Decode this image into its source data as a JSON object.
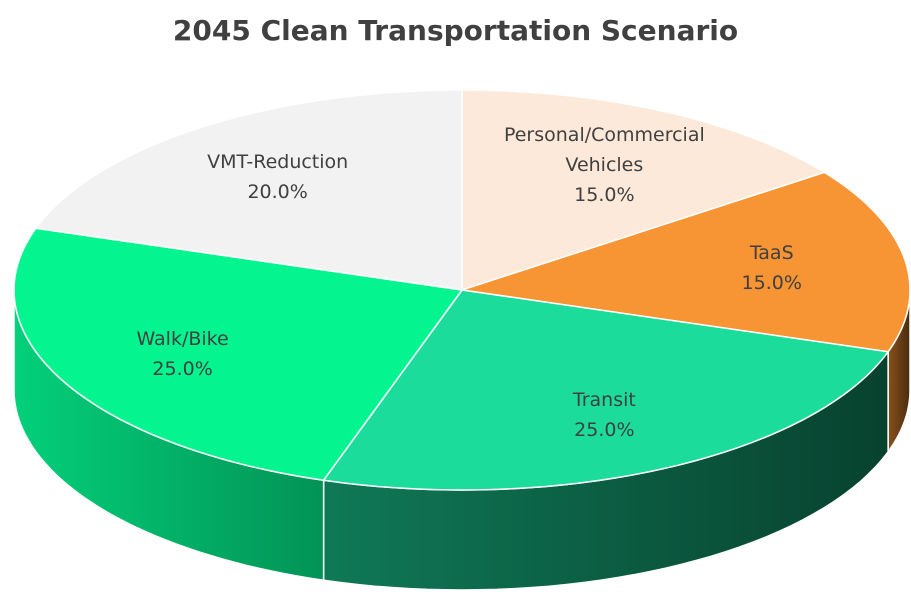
{
  "chart_data": {
    "type": "pie",
    "title": "2045 Clean Transportation Scenario",
    "categories": [
      "Personal/Commercial Vehicles",
      "TaaS",
      "Transit",
      "Walk/Bike",
      "VMT-Reduction"
    ],
    "values": [
      15,
      15,
      25,
      25,
      20
    ],
    "value_labels": [
      "15.0%",
      "15.0%",
      "25.0%",
      "25.0%",
      "20.0%"
    ],
    "colors": [
      "#fde9d9",
      "#f79433",
      "#1cdc9c",
      "#04f590",
      "#f2f2f2"
    ]
  }
}
